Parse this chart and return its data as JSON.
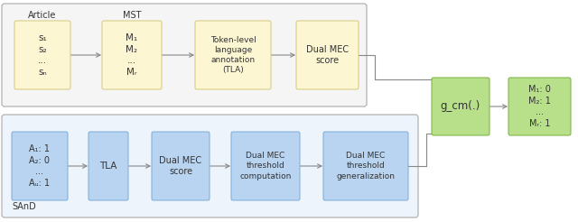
{
  "bg_color": "#ffffff",
  "top_box_color": "#fdf6d3",
  "top_box_edge": "#d4c87a",
  "blue_box_color": "#b8d4f0",
  "blue_box_edge": "#7aaad4",
  "green_box_color": "#b8e08a",
  "green_box_edge": "#78b03a",
  "outline_top_fc": "#f5f5f5",
  "outline_bot_fc": "#eef4fb",
  "outline_color": "#aaaaaa",
  "text_color": "#333333",
  "arrow_color": "#888888",
  "top_row": {
    "label_article": "Article",
    "label_mst": "MST",
    "box1_text": "s₁\ns₂\n...\nsₙ",
    "box2_text": "M₁\nM₂\n...\nMᵣ",
    "box3_text": "Token-level\nlanguage\nannotation\n(TLA)",
    "box4_text": "Dual MEC\nscore"
  },
  "middle": {
    "gcm_text": "g_cm(.)",
    "output_text": "M₁: 0\nM₂: 1\n...\nMᵣ: 1"
  },
  "bottom_row": {
    "label_sand": "SAnD",
    "box1_text": "A₁: 1\nA₂: 0\n...\nAᵤ: 1",
    "box2_text": "TLA",
    "box3_text": "Dual MEC\nscore",
    "box4_text": "Dual MEC\nthreshold\ncomputation",
    "box5_text": "Dual MEC\nthreshold\ngeneralization"
  }
}
